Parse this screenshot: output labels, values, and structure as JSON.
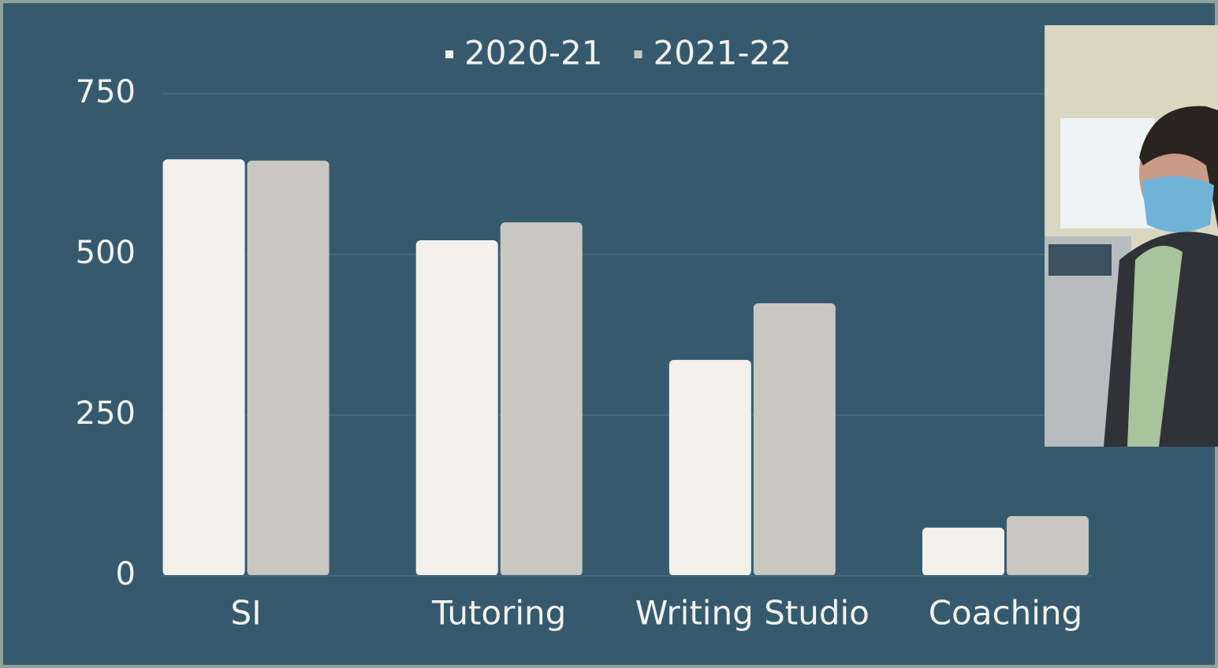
{
  "chart_data": {
    "type": "bar",
    "categories": [
      "SI",
      "Tutoring",
      "Writing Studio",
      "Coaching"
    ],
    "series": [
      {
        "name": "2020-21",
        "color": "#f2f1ec",
        "values": [
          648,
          522,
          336,
          75
        ]
      },
      {
        "name": "2021-22",
        "color": "#c8c7c2",
        "values": [
          646,
          550,
          424,
          93
        ]
      }
    ],
    "ylim": [
      0,
      750
    ],
    "yticks": [
      0,
      250,
      500,
      750
    ],
    "grid": true,
    "legend": "top"
  }
}
